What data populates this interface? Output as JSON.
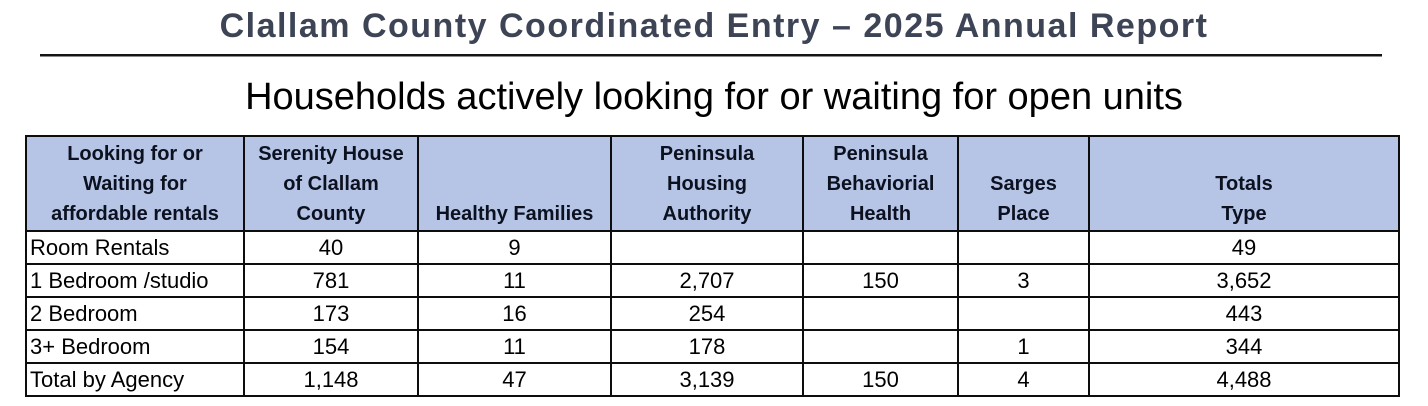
{
  "page": {
    "title": "Clallam County Coordinated Entry – 2025 Annual Report",
    "subtitle": "Households actively looking for or waiting for open units"
  },
  "colors": {
    "header_bg": "#b6c4e6",
    "title_color": "#3d4456",
    "border_color": "#0d0d0d",
    "text_color": "#000000"
  },
  "table": {
    "columns": [
      {
        "label": "Looking for or\nWaiting for\naffordable rentals"
      },
      {
        "label": "Serenity House\nof Clallam\nCounty"
      },
      {
        "label": "Healthy Families"
      },
      {
        "label": "Peninsula\nHousing\nAuthority"
      },
      {
        "label": "Peninsula\nBehaviorial\nHealth"
      },
      {
        "label": "Sarges\nPlace"
      },
      {
        "label": "Totals\nType"
      }
    ],
    "rows": [
      {
        "label": "Room Rentals",
        "values": [
          "40",
          "9",
          "",
          "",
          "",
          "49"
        ]
      },
      {
        "label": "1 Bedroom /studio",
        "values": [
          "781",
          "11",
          "2,707",
          "150",
          "3",
          "3,652"
        ]
      },
      {
        "label": "2 Bedroom",
        "values": [
          "173",
          "16",
          "254",
          "",
          "",
          "443"
        ]
      },
      {
        "label": "3+ Bedroom",
        "values": [
          "154",
          "11",
          "178",
          "",
          "1",
          "344"
        ]
      },
      {
        "label": "Total by Agency",
        "values": [
          "1,148",
          "47",
          "3,139",
          "150",
          "4",
          "4,488"
        ]
      }
    ]
  }
}
